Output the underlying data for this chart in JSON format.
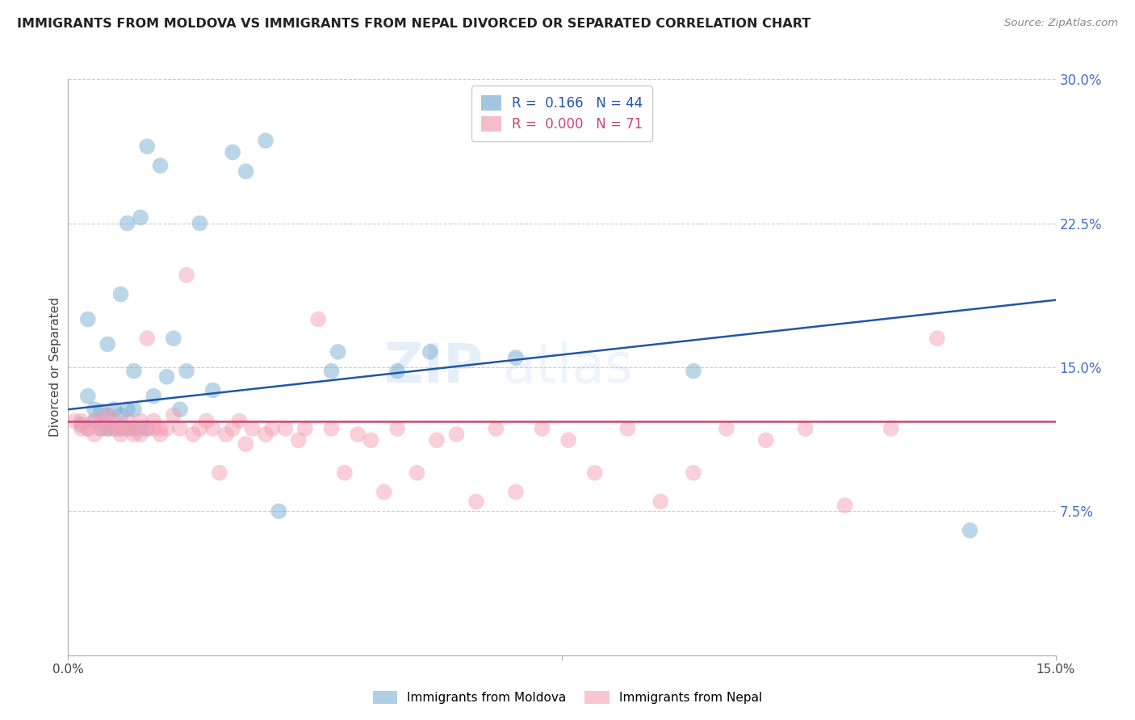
{
  "title": "IMMIGRANTS FROM MOLDOVA VS IMMIGRANTS FROM NEPAL DIVORCED OR SEPARATED CORRELATION CHART",
  "source": "Source: ZipAtlas.com",
  "ylabel": "Divorced or Separated",
  "x_min": 0.0,
  "x_max": 0.15,
  "y_min": 0.0,
  "y_max": 0.3,
  "moldova_R": 0.166,
  "moldova_N": 44,
  "nepal_R": 0.0,
  "nepal_N": 71,
  "moldova_color": "#7bafd4",
  "nepal_color": "#f4a0b5",
  "moldova_line_color": "#2255aa",
  "nepal_line_color": "#cc4477",
  "background_color": "#ffffff",
  "grid_color": "#cccccc",
  "moldova_x": [
    0.002,
    0.003,
    0.003,
    0.004,
    0.004,
    0.005,
    0.005,
    0.006,
    0.006,
    0.006,
    0.007,
    0.007,
    0.008,
    0.008,
    0.008,
    0.009,
    0.009,
    0.009,
    0.01,
    0.01,
    0.01,
    0.011,
    0.011,
    0.012,
    0.012,
    0.013,
    0.014,
    0.015,
    0.016,
    0.017,
    0.018,
    0.02,
    0.022,
    0.025,
    0.027,
    0.03,
    0.032,
    0.04,
    0.041,
    0.05,
    0.055,
    0.068,
    0.095,
    0.137
  ],
  "moldova_y": [
    0.12,
    0.175,
    0.135,
    0.122,
    0.128,
    0.118,
    0.127,
    0.118,
    0.125,
    0.162,
    0.118,
    0.128,
    0.118,
    0.125,
    0.188,
    0.118,
    0.128,
    0.225,
    0.118,
    0.128,
    0.148,
    0.118,
    0.228,
    0.118,
    0.265,
    0.135,
    0.255,
    0.145,
    0.165,
    0.128,
    0.148,
    0.225,
    0.138,
    0.262,
    0.252,
    0.268,
    0.075,
    0.148,
    0.158,
    0.148,
    0.158,
    0.155,
    0.148,
    0.065
  ],
  "nepal_x": [
    0.001,
    0.002,
    0.002,
    0.003,
    0.003,
    0.004,
    0.004,
    0.005,
    0.005,
    0.006,
    0.006,
    0.007,
    0.007,
    0.008,
    0.008,
    0.009,
    0.009,
    0.01,
    0.01,
    0.011,
    0.011,
    0.012,
    0.012,
    0.013,
    0.013,
    0.014,
    0.014,
    0.015,
    0.016,
    0.017,
    0.018,
    0.019,
    0.02,
    0.021,
    0.022,
    0.023,
    0.024,
    0.025,
    0.026,
    0.027,
    0.028,
    0.03,
    0.031,
    0.033,
    0.035,
    0.036,
    0.038,
    0.04,
    0.042,
    0.044,
    0.046,
    0.048,
    0.05,
    0.053,
    0.056,
    0.059,
    0.062,
    0.065,
    0.068,
    0.072,
    0.076,
    0.08,
    0.085,
    0.09,
    0.095,
    0.1,
    0.106,
    0.112,
    0.118,
    0.125,
    0.132
  ],
  "nepal_y": [
    0.122,
    0.118,
    0.122,
    0.118,
    0.118,
    0.122,
    0.115,
    0.118,
    0.122,
    0.118,
    0.125,
    0.118,
    0.122,
    0.118,
    0.115,
    0.118,
    0.122,
    0.118,
    0.115,
    0.122,
    0.115,
    0.118,
    0.165,
    0.118,
    0.122,
    0.115,
    0.118,
    0.118,
    0.125,
    0.118,
    0.198,
    0.115,
    0.118,
    0.122,
    0.118,
    0.095,
    0.115,
    0.118,
    0.122,
    0.11,
    0.118,
    0.115,
    0.118,
    0.118,
    0.112,
    0.118,
    0.175,
    0.118,
    0.095,
    0.115,
    0.112,
    0.085,
    0.118,
    0.095,
    0.112,
    0.115,
    0.08,
    0.118,
    0.085,
    0.118,
    0.112,
    0.095,
    0.118,
    0.08,
    0.095,
    0.118,
    0.112,
    0.118,
    0.078,
    0.118,
    0.165
  ],
  "moldova_trend_x0": 0.0,
  "moldova_trend_x1": 0.15,
  "moldova_trend_y0": 0.128,
  "moldova_trend_y1": 0.185,
  "nepal_trend_x0": 0.0,
  "nepal_trend_x1": 0.15,
  "nepal_trend_y0": 0.122,
  "nepal_trend_y1": 0.122
}
